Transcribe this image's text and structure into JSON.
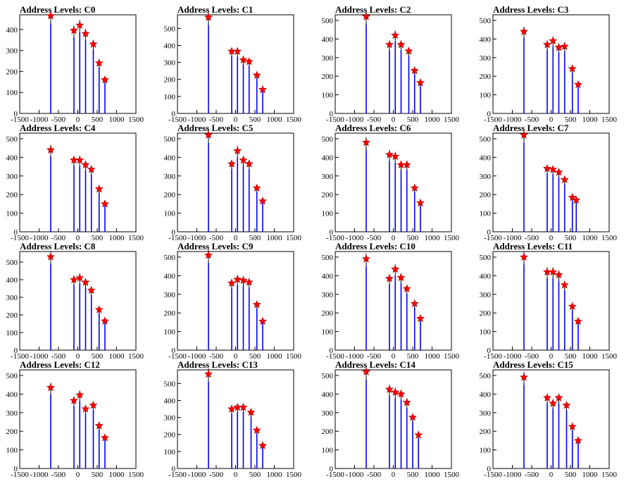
{
  "colors": {
    "bar": "#0000ee",
    "marker": "#ff0000",
    "axis": "#000000",
    "background": "#ffffff"
  },
  "chart_data": [
    {
      "type": "bar",
      "title": "Address Levels: C0",
      "xlim": [
        -1500,
        1500
      ],
      "ylim": [
        0,
        470
      ],
      "x_ticks": [
        -1500,
        -1000,
        -500,
        0,
        500,
        1000,
        1500
      ],
      "y_ticks": [
        100,
        200,
        300,
        400
      ],
      "peaks": [
        {
          "x": -700,
          "y": 465
        },
        {
          "x": -100,
          "y": 395
        },
        {
          "x": 50,
          "y": 420
        },
        {
          "x": 200,
          "y": 380
        },
        {
          "x": 400,
          "y": 330
        },
        {
          "x": 550,
          "y": 240
        },
        {
          "x": 700,
          "y": 160
        }
      ]
    },
    {
      "type": "bar",
      "title": "Address Levels: C1",
      "xlim": [
        -1500,
        1500
      ],
      "ylim": [
        0,
        580
      ],
      "x_ticks": [
        -1500,
        -1000,
        -500,
        0,
        500,
        1000,
        1500
      ],
      "y_ticks": [
        100,
        200,
        300,
        400,
        500
      ],
      "peaks": [
        {
          "x": -700,
          "y": 565
        },
        {
          "x": -100,
          "y": 365
        },
        {
          "x": 50,
          "y": 365
        },
        {
          "x": 200,
          "y": 315
        },
        {
          "x": 350,
          "y": 305
        },
        {
          "x": 550,
          "y": 225
        },
        {
          "x": 700,
          "y": 140
        }
      ]
    },
    {
      "type": "bar",
      "title": "Address Levels: C2",
      "xlim": [
        -1500,
        1500
      ],
      "ylim": [
        0,
        530
      ],
      "x_ticks": [
        -1500,
        -1000,
        -500,
        0,
        500,
        1000,
        1500
      ],
      "y_ticks": [
        100,
        200,
        300,
        400,
        500
      ],
      "peaks": [
        {
          "x": -700,
          "y": 520
        },
        {
          "x": -100,
          "y": 370
        },
        {
          "x": 50,
          "y": 420
        },
        {
          "x": 200,
          "y": 370
        },
        {
          "x": 400,
          "y": 335
        },
        {
          "x": 550,
          "y": 230
        },
        {
          "x": 700,
          "y": 165
        }
      ]
    },
    {
      "type": "bar",
      "title": "Address Levels: C3",
      "xlim": [
        -1500,
        1500
      ],
      "ylim": [
        0,
        530
      ],
      "x_ticks": [
        -1500,
        -1000,
        -500,
        0,
        500,
        1000,
        1500
      ],
      "y_ticks": [
        100,
        200,
        300,
        400,
        500
      ],
      "peaks": [
        {
          "x": -700,
          "y": 440
        },
        {
          "x": -100,
          "y": 370
        },
        {
          "x": 50,
          "y": 390
        },
        {
          "x": 200,
          "y": 355
        },
        {
          "x": 350,
          "y": 360
        },
        {
          "x": 550,
          "y": 240
        },
        {
          "x": 700,
          "y": 155
        }
      ]
    },
    {
      "type": "bar",
      "title": "Address Levels: C4",
      "xlim": [
        -1500,
        1500
      ],
      "ylim": [
        0,
        530
      ],
      "x_ticks": [
        -1500,
        -1000,
        -500,
        0,
        500,
        1000,
        1500
      ],
      "y_ticks": [
        100,
        200,
        300,
        400,
        500
      ],
      "peaks": [
        {
          "x": -700,
          "y": 440
        },
        {
          "x": -100,
          "y": 385
        },
        {
          "x": 50,
          "y": 385
        },
        {
          "x": 200,
          "y": 360
        },
        {
          "x": 350,
          "y": 335
        },
        {
          "x": 550,
          "y": 230
        },
        {
          "x": 700,
          "y": 150
        }
      ]
    },
    {
      "type": "bar",
      "title": "Address Levels: C5",
      "xlim": [
        -1500,
        1500
      ],
      "ylim": [
        0,
        530
      ],
      "x_ticks": [
        -1500,
        -1000,
        -500,
        0,
        500,
        1000,
        1500
      ],
      "y_ticks": [
        100,
        200,
        300,
        400,
        500
      ],
      "peaks": [
        {
          "x": -700,
          "y": 520
        },
        {
          "x": -100,
          "y": 365
        },
        {
          "x": 50,
          "y": 435
        },
        {
          "x": 200,
          "y": 385
        },
        {
          "x": 350,
          "y": 365
        },
        {
          "x": 550,
          "y": 235
        },
        {
          "x": 700,
          "y": 165
        }
      ]
    },
    {
      "type": "bar",
      "title": "Address Levels: C6",
      "xlim": [
        -1500,
        1500
      ],
      "ylim": [
        0,
        530
      ],
      "x_ticks": [
        -1500,
        -1000,
        -500,
        0,
        500,
        1000,
        1500
      ],
      "y_ticks": [
        100,
        200,
        300,
        400,
        500
      ],
      "peaks": [
        {
          "x": -700,
          "y": 480
        },
        {
          "x": -100,
          "y": 415
        },
        {
          "x": 50,
          "y": 405
        },
        {
          "x": 200,
          "y": 360
        },
        {
          "x": 350,
          "y": 360
        },
        {
          "x": 550,
          "y": 235
        },
        {
          "x": 700,
          "y": 155
        }
      ]
    },
    {
      "type": "bar",
      "title": "Address Levels: C7",
      "xlim": [
        -1500,
        1500
      ],
      "ylim": [
        0,
        530
      ],
      "x_ticks": [
        -1500,
        -1000,
        -500,
        0,
        500,
        1000,
        1500
      ],
      "y_ticks": [
        100,
        200,
        300,
        400,
        500
      ],
      "peaks": [
        {
          "x": -700,
          "y": 520
        },
        {
          "x": -100,
          "y": 340
        },
        {
          "x": 50,
          "y": 335
        },
        {
          "x": 200,
          "y": 320
        },
        {
          "x": 350,
          "y": 280
        },
        {
          "x": 550,
          "y": 185
        },
        {
          "x": 650,
          "y": 170
        }
      ]
    },
    {
      "type": "bar",
      "title": "Address Levels: C8",
      "xlim": [
        -1500,
        1500
      ],
      "ylim": [
        0,
        560
      ],
      "x_ticks": [
        -1500,
        -1000,
        -500,
        0,
        500,
        1000,
        1500
      ],
      "y_ticks": [
        100,
        200,
        300,
        400,
        500
      ],
      "peaks": [
        {
          "x": -700,
          "y": 530
        },
        {
          "x": -100,
          "y": 400
        },
        {
          "x": 50,
          "y": 410
        },
        {
          "x": 200,
          "y": 385
        },
        {
          "x": 350,
          "y": 340
        },
        {
          "x": 550,
          "y": 230
        },
        {
          "x": 700,
          "y": 165
        }
      ]
    },
    {
      "type": "bar",
      "title": "Address Levels: C9",
      "xlim": [
        -1500,
        1500
      ],
      "ylim": [
        0,
        530
      ],
      "x_ticks": [
        -1500,
        -1000,
        -500,
        0,
        500,
        1000,
        1500
      ],
      "y_ticks": [
        100,
        200,
        300,
        400,
        500
      ],
      "peaks": [
        {
          "x": -700,
          "y": 510
        },
        {
          "x": -100,
          "y": 360
        },
        {
          "x": 50,
          "y": 380
        },
        {
          "x": 200,
          "y": 375
        },
        {
          "x": 350,
          "y": 365
        },
        {
          "x": 550,
          "y": 245
        },
        {
          "x": 700,
          "y": 155
        }
      ]
    },
    {
      "type": "bar",
      "title": "Address Levels: C10",
      "xlim": [
        -1500,
        1500
      ],
      "ylim": [
        0,
        530
      ],
      "x_ticks": [
        -1500,
        -1000,
        -500,
        0,
        500,
        1000,
        1500
      ],
      "y_ticks": [
        100,
        200,
        300,
        400,
        500
      ],
      "peaks": [
        {
          "x": -700,
          "y": 490
        },
        {
          "x": -100,
          "y": 385
        },
        {
          "x": 50,
          "y": 435
        },
        {
          "x": 200,
          "y": 390
        },
        {
          "x": 350,
          "y": 330
        },
        {
          "x": 550,
          "y": 250
        },
        {
          "x": 700,
          "y": 170
        }
      ]
    },
    {
      "type": "bar",
      "title": "Address Levels: C11",
      "xlim": [
        -1500,
        1500
      ],
      "ylim": [
        0,
        530
      ],
      "x_ticks": [
        -1500,
        -1000,
        -500,
        0,
        500,
        1000,
        1500
      ],
      "y_ticks": [
        100,
        200,
        300,
        400,
        500
      ],
      "peaks": [
        {
          "x": -700,
          "y": 500
        },
        {
          "x": -100,
          "y": 420
        },
        {
          "x": 50,
          "y": 420
        },
        {
          "x": 200,
          "y": 405
        },
        {
          "x": 350,
          "y": 350
        },
        {
          "x": 550,
          "y": 235
        },
        {
          "x": 700,
          "y": 155
        }
      ]
    },
    {
      "type": "bar",
      "title": "Address Levels: C12",
      "xlim": [
        -1500,
        1500
      ],
      "ylim": [
        0,
        530
      ],
      "x_ticks": [
        -1500,
        -1000,
        -500,
        0,
        500,
        1000,
        1500
      ],
      "y_ticks": [
        100,
        200,
        300,
        400,
        500
      ],
      "peaks": [
        {
          "x": -700,
          "y": 435
        },
        {
          "x": -100,
          "y": 365
        },
        {
          "x": 50,
          "y": 395
        },
        {
          "x": 200,
          "y": 320
        },
        {
          "x": 400,
          "y": 340
        },
        {
          "x": 550,
          "y": 230
        },
        {
          "x": 700,
          "y": 165
        }
      ]
    },
    {
      "type": "bar",
      "title": "Address Levels: C13",
      "xlim": [
        -1500,
        1500
      ],
      "ylim": [
        0,
        580
      ],
      "x_ticks": [
        -1500,
        -1000,
        -500,
        0,
        500,
        1000,
        1500
      ],
      "y_ticks": [
        100,
        200,
        300,
        400,
        500
      ],
      "peaks": [
        {
          "x": -700,
          "y": 555
        },
        {
          "x": -100,
          "y": 350
        },
        {
          "x": 50,
          "y": 360
        },
        {
          "x": 200,
          "y": 360
        },
        {
          "x": 400,
          "y": 330
        },
        {
          "x": 550,
          "y": 225
        },
        {
          "x": 700,
          "y": 135
        }
      ]
    },
    {
      "type": "bar",
      "title": "Address Levels: C14",
      "xlim": [
        -1500,
        1500
      ],
      "ylim": [
        0,
        530
      ],
      "x_ticks": [
        -1500,
        -1000,
        -500,
        0,
        500,
        1000,
        1500
      ],
      "y_ticks": [
        100,
        200,
        300,
        400,
        500
      ],
      "peaks": [
        {
          "x": -700,
          "y": 520
        },
        {
          "x": -100,
          "y": 425
        },
        {
          "x": 50,
          "y": 410
        },
        {
          "x": 200,
          "y": 400
        },
        {
          "x": 350,
          "y": 355
        },
        {
          "x": 500,
          "y": 275
        },
        {
          "x": 650,
          "y": 180
        }
      ]
    },
    {
      "type": "bar",
      "title": "Address Levels: C15",
      "xlim": [
        -1500,
        1500
      ],
      "ylim": [
        0,
        530
      ],
      "x_ticks": [
        -1500,
        -1000,
        -500,
        0,
        500,
        1000,
        1500
      ],
      "y_ticks": [
        100,
        200,
        300,
        400,
        500
      ],
      "peaks": [
        {
          "x": -700,
          "y": 490
        },
        {
          "x": -100,
          "y": 380
        },
        {
          "x": 50,
          "y": 350
        },
        {
          "x": 200,
          "y": 380
        },
        {
          "x": 400,
          "y": 340
        },
        {
          "x": 550,
          "y": 225
        },
        {
          "x": 700,
          "y": 150
        }
      ]
    }
  ]
}
